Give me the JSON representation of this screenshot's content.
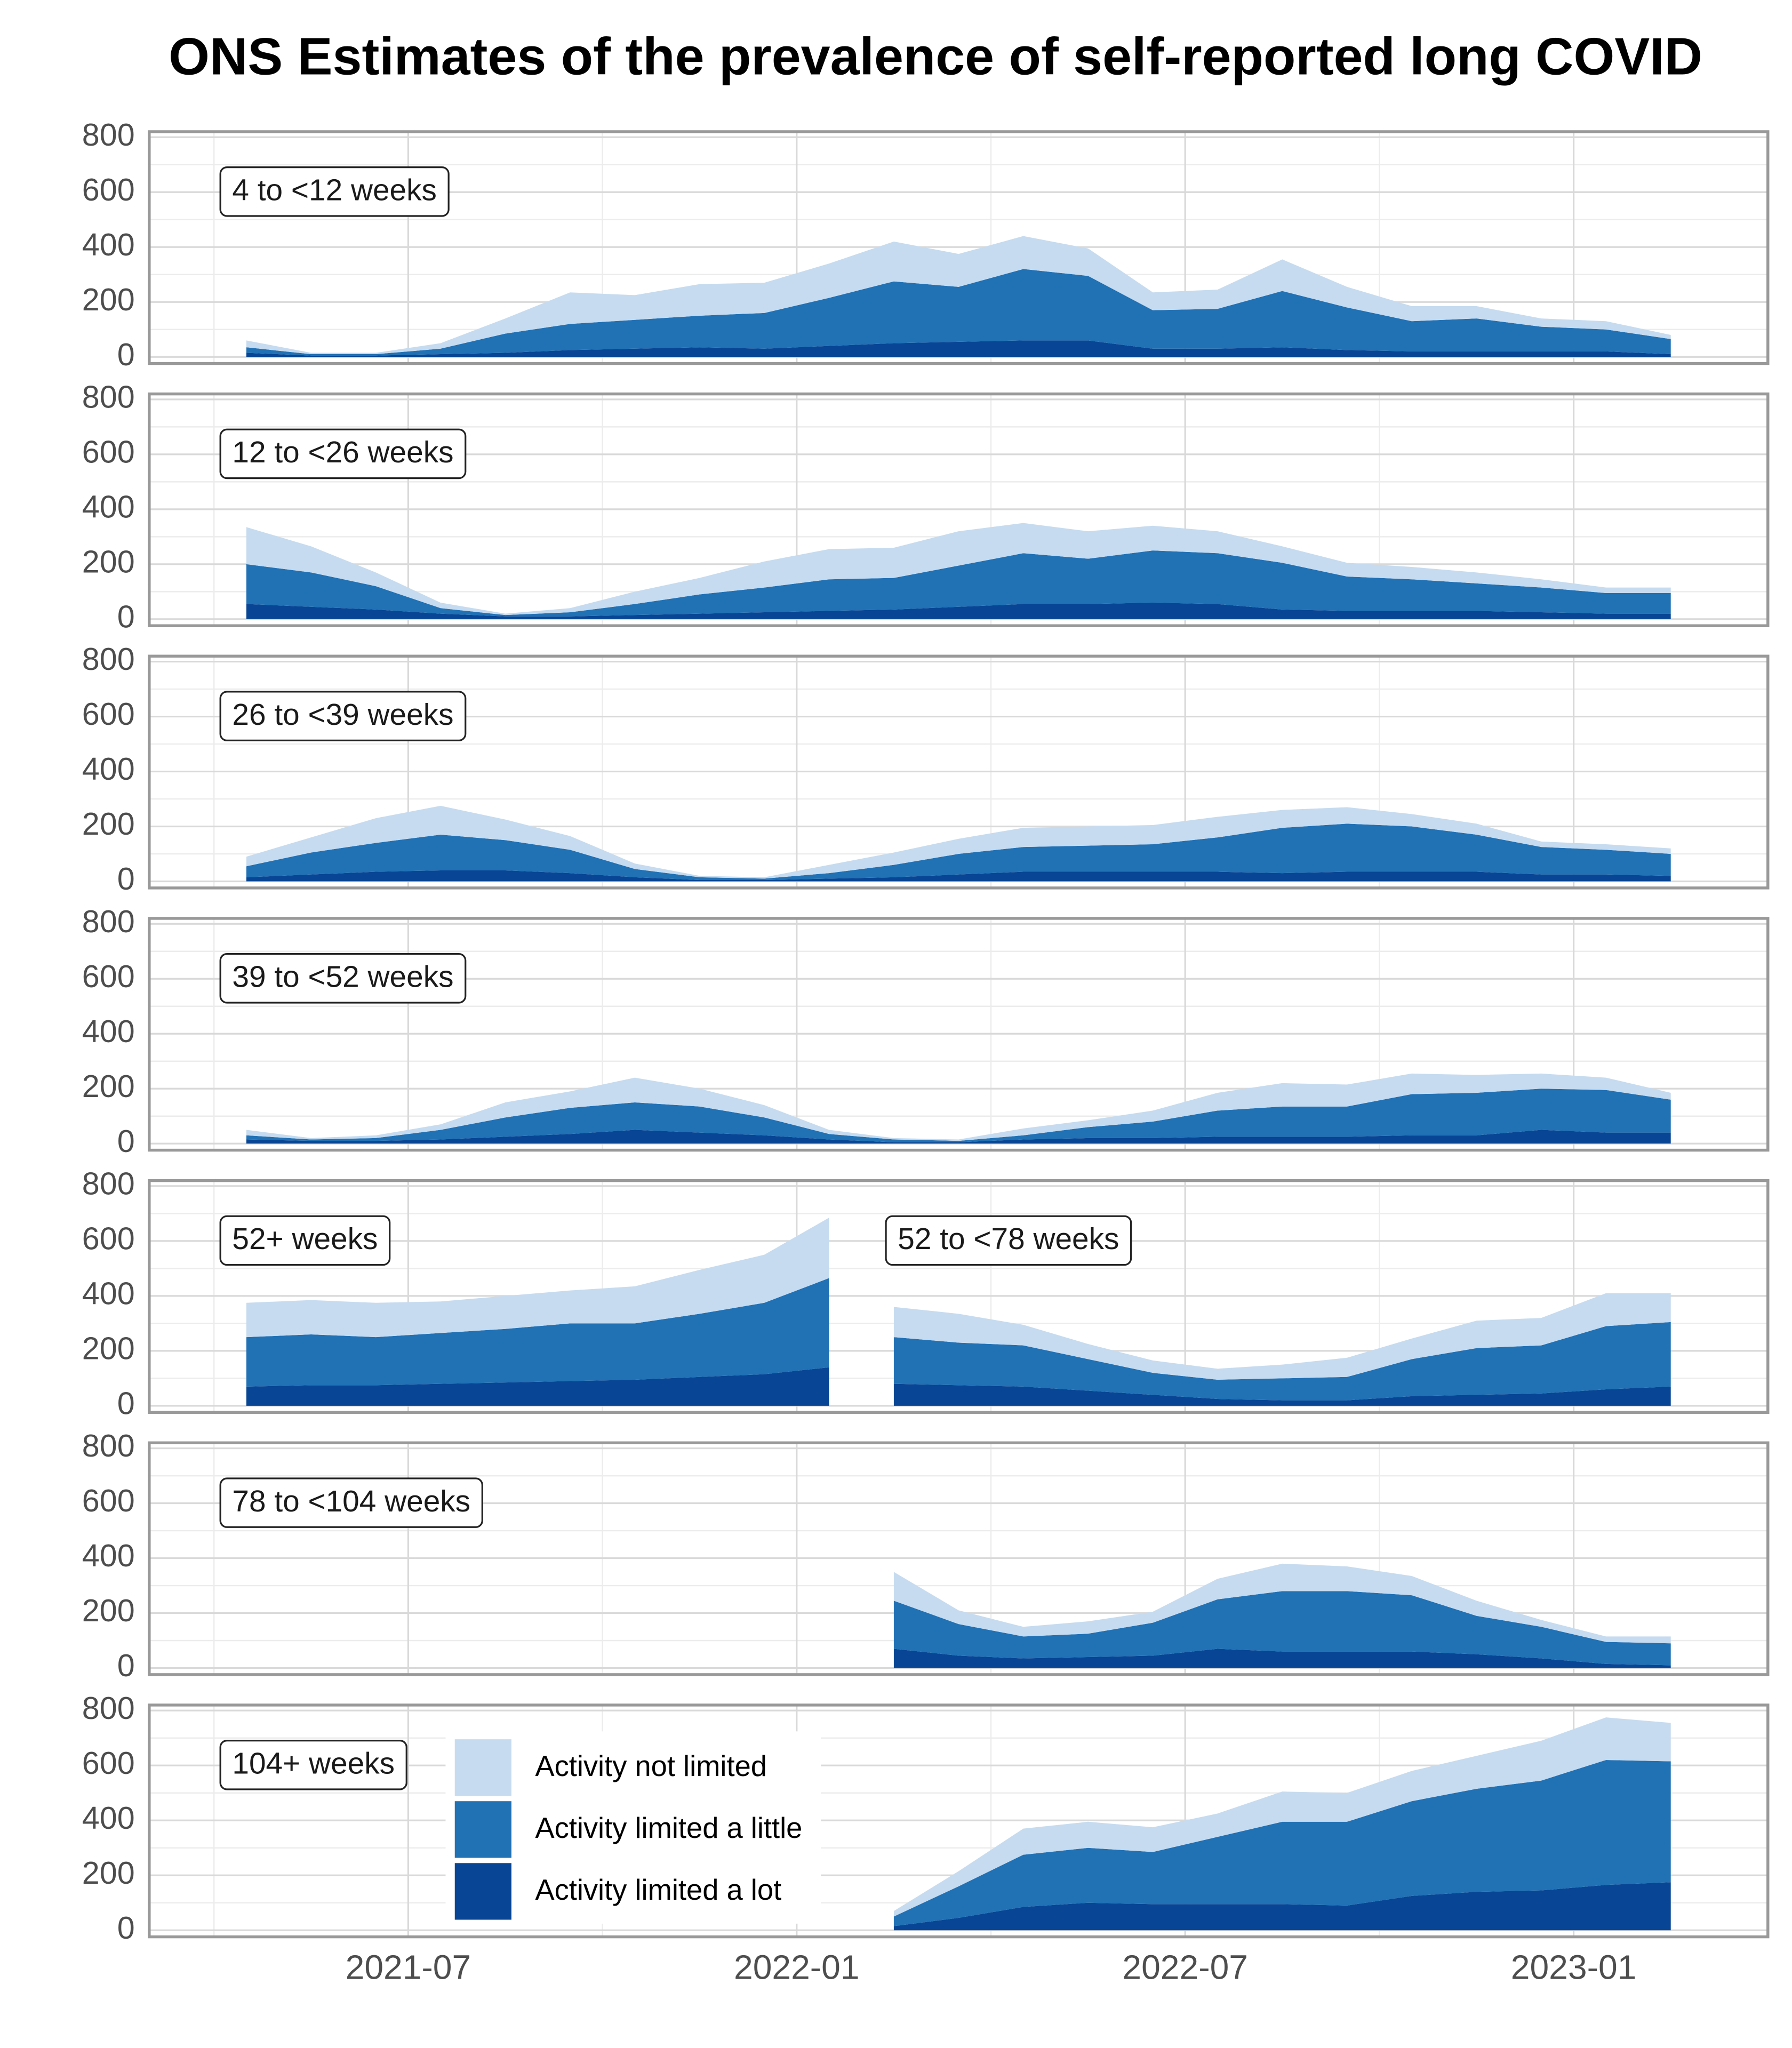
{
  "chart_data": {
    "type": "area",
    "stacked": true,
    "grid": true,
    "title": "ONS Estimates of the prevalence of self-reported long COVID",
    "x": [
      "2021-04",
      "2021-05",
      "2021-06",
      "2021-07",
      "2021-08",
      "2021-09",
      "2021-10",
      "2021-11",
      "2021-12",
      "2022-01",
      "2022-02",
      "2022-03",
      "2022-04",
      "2022-05",
      "2022-06",
      "2022-07",
      "2022-08",
      "2022-09",
      "2022-10",
      "2022-11",
      "2022-12",
      "2023-01",
      "2023-02"
    ],
    "xlim": [
      "2021-03",
      "2023-04"
    ],
    "xticks": [
      "2021-07",
      "2022-01",
      "2022-07",
      "2023-01"
    ],
    "ylim": [
      -24,
      820
    ],
    "yticks": [
      0,
      200,
      400,
      600,
      800
    ],
    "series": [
      {
        "name": "Activity not limited",
        "color": "#c6dbef"
      },
      {
        "name": "Activity limited a little",
        "color": "#2171b5"
      },
      {
        "name": "Activity limited a lot",
        "color": "#084594"
      }
    ],
    "panels": [
      {
        "groups": [
          {
            "label": "4 to <12 weeks",
            "values": [
              [
                25,
                5,
                5,
                20,
                55,
                115,
                90,
                115,
                110,
                125,
                145,
                120,
                120,
                100,
                65,
                70,
                115,
                75,
                55,
                45,
                30,
                30,
                15
              ],
              [
                20,
                5,
                5,
                20,
                70,
                95,
                105,
                115,
                130,
                175,
                225,
                200,
                260,
                235,
                140,
                145,
                205,
                155,
                110,
                120,
                90,
                80,
                55
              ],
              [
                15,
                5,
                5,
                10,
                15,
                25,
                30,
                35,
                30,
                40,
                50,
                55,
                60,
                60,
                30,
                30,
                35,
                25,
                20,
                20,
                20,
                20,
                10
              ]
            ]
          }
        ]
      },
      {
        "groups": [
          {
            "label": "12 to <26 weeks",
            "values": [
              [
                135,
                95,
                50,
                20,
                5,
                15,
                45,
                60,
                95,
                110,
                110,
                125,
                110,
                100,
                90,
                80,
                60,
                50,
                45,
                40,
                30,
                20,
                20
              ],
              [
                145,
                125,
                85,
                20,
                5,
                15,
                40,
                70,
                90,
                115,
                115,
                150,
                185,
                165,
                190,
                185,
                170,
                125,
                115,
                100,
                90,
                75,
                75
              ],
              [
                55,
                45,
                35,
                20,
                10,
                10,
                15,
                20,
                25,
                30,
                35,
                45,
                55,
                55,
                60,
                55,
                35,
                30,
                30,
                30,
                25,
                20,
                20
              ]
            ]
          }
        ]
      },
      {
        "groups": [
          {
            "label": "26 to <39 weeks",
            "values": [
              [
                35,
                55,
                90,
                105,
                75,
                50,
                20,
                5,
                5,
                30,
                45,
                55,
                70,
                70,
                70,
                75,
                65,
                60,
                45,
                40,
                20,
                20,
                20
              ],
              [
                40,
                80,
                105,
                130,
                110,
                85,
                30,
                10,
                5,
                20,
                45,
                75,
                90,
                95,
                100,
                125,
                165,
                175,
                165,
                135,
                100,
                90,
                80
              ],
              [
                15,
                25,
                35,
                40,
                40,
                30,
                15,
                5,
                5,
                10,
                15,
                25,
                35,
                35,
                35,
                35,
                30,
                35,
                35,
                35,
                25,
                25,
                20
              ]
            ]
          }
        ]
      },
      {
        "groups": [
          {
            "label": "39 to <52 weeks",
            "values": [
              [
                20,
                5,
                10,
                20,
                55,
                60,
                90,
                65,
                45,
                15,
                5,
                5,
                25,
                25,
                40,
                65,
                85,
                80,
                75,
                65,
                55,
                45,
                25
              ],
              [
                15,
                5,
                10,
                35,
                70,
                95,
                100,
                95,
                65,
                20,
                10,
                5,
                15,
                40,
                60,
                95,
                110,
                110,
                150,
                155,
                150,
                155,
                120
              ],
              [
                15,
                10,
                10,
                15,
                25,
                35,
                50,
                40,
                30,
                15,
                5,
                5,
                15,
                20,
                20,
                25,
                25,
                25,
                30,
                30,
                50,
                40,
                40
              ]
            ]
          }
        ]
      },
      {
        "groups": [
          {
            "label": "52+ weeks",
            "values": [
              [
                125,
                125,
                125,
                115,
                120,
                120,
                135,
                160,
                175,
                220,
                null,
                null,
                null,
                null,
                null,
                null,
                null,
                null,
                null,
                null,
                null,
                null,
                null
              ],
              [
                180,
                185,
                175,
                185,
                195,
                210,
                205,
                230,
                260,
                325,
                null,
                null,
                null,
                null,
                null,
                null,
                null,
                null,
                null,
                null,
                null,
                null,
                null
              ],
              [
                70,
                75,
                75,
                80,
                85,
                90,
                95,
                105,
                115,
                140,
                null,
                null,
                null,
                null,
                null,
                null,
                null,
                null,
                null,
                null,
                null,
                null,
                null
              ]
            ]
          },
          {
            "label": "52 to <78 weeks",
            "values": [
              [
                null,
                null,
                null,
                null,
                null,
                null,
                null,
                null,
                null,
                null,
                110,
                105,
                75,
                55,
                45,
                40,
                50,
                70,
                75,
                100,
                100,
                120,
                105
              ],
              [
                null,
                null,
                null,
                null,
                null,
                null,
                null,
                null,
                null,
                null,
                170,
                155,
                150,
                115,
                80,
                70,
                80,
                85,
                135,
                170,
                175,
                230,
                235
              ],
              [
                null,
                null,
                null,
                null,
                null,
                null,
                null,
                null,
                null,
                null,
                80,
                75,
                70,
                55,
                40,
                25,
                20,
                20,
                35,
                40,
                45,
                60,
                70
              ]
            ]
          }
        ]
      },
      {
        "groups": [
          {
            "label": "78 to <104 weeks",
            "values": [
              [
                null,
                null,
                null,
                null,
                null,
                null,
                null,
                null,
                null,
                null,
                105,
                50,
                35,
                45,
                40,
                75,
                100,
                90,
                70,
                55,
                25,
                20,
                25
              ],
              [
                null,
                null,
                null,
                null,
                null,
                null,
                null,
                null,
                null,
                null,
                175,
                115,
                80,
                85,
                120,
                180,
                220,
                220,
                205,
                140,
                115,
                80,
                80
              ],
              [
                null,
                null,
                null,
                null,
                null,
                null,
                null,
                null,
                null,
                null,
                70,
                45,
                35,
                40,
                45,
                70,
                60,
                60,
                60,
                50,
                35,
                15,
                10
              ]
            ]
          }
        ]
      },
      {
        "groups": [
          {
            "label": "104+ weeks",
            "values": [
              [
                null,
                null,
                null,
                null,
                null,
                null,
                null,
                null,
                null,
                null,
                20,
                55,
                95,
                95,
                90,
                85,
                110,
                105,
                110,
                120,
                145,
                155,
                140
              ],
              [
                null,
                null,
                null,
                null,
                null,
                null,
                null,
                null,
                null,
                null,
                35,
                115,
                190,
                200,
                190,
                245,
                300,
                305,
                345,
                375,
                400,
                455,
                440
              ],
              [
                null,
                null,
                null,
                null,
                null,
                null,
                null,
                null,
                null,
                null,
                15,
                45,
                85,
                100,
                95,
                95,
                95,
                90,
                125,
                140,
                145,
                165,
                175
              ]
            ]
          }
        ]
      }
    ]
  }
}
